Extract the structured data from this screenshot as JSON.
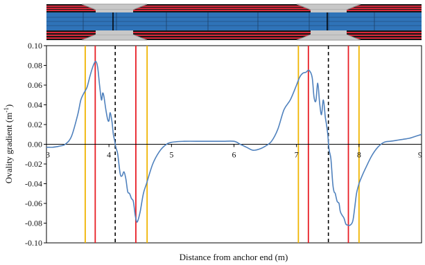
{
  "chart_data": {
    "type": "line",
    "xlabel": "Distance from anchor end (m)",
    "ylabel": "Ovality gradient (m",
    "ylabel_sup": "-1",
    "ylabel_close": ")",
    "xlim": [
      3,
      9
    ],
    "ylim": [
      -0.1,
      0.1
    ],
    "x_ticks": [
      3,
      4,
      5,
      6,
      7,
      8,
      9
    ],
    "y_ticks": [
      0.1,
      0.08,
      0.06,
      0.04,
      0.02,
      0.0,
      -0.02,
      -0.04,
      -0.06,
      -0.08,
      -0.1
    ],
    "y_tick_labels": [
      "0.10",
      "0.08",
      "0.06",
      "0.04",
      "0.02",
      "0.00",
      "-0.02",
      "-0.04",
      "-0.06",
      "-0.08",
      "-0.10"
    ],
    "grid": false,
    "series": [
      {
        "color": "#4f81bd",
        "points": [
          [
            3.0,
            -0.003
          ],
          [
            3.1,
            -0.003
          ],
          [
            3.2,
            -0.002
          ],
          [
            3.3,
            0.0
          ],
          [
            3.4,
            0.008
          ],
          [
            3.5,
            0.03
          ],
          [
            3.55,
            0.045
          ],
          [
            3.6,
            0.052
          ],
          [
            3.65,
            0.058
          ],
          [
            3.7,
            0.07
          ],
          [
            3.75,
            0.08
          ],
          [
            3.79,
            0.084
          ],
          [
            3.82,
            0.078
          ],
          [
            3.85,
            0.06
          ],
          [
            3.88,
            0.045
          ],
          [
            3.9,
            0.052
          ],
          [
            3.92,
            0.048
          ],
          [
            3.95,
            0.035
          ],
          [
            3.98,
            0.025
          ],
          [
            4.0,
            0.024
          ],
          [
            4.02,
            0.032
          ],
          [
            4.05,
            0.022
          ],
          [
            4.07,
            0.01
          ],
          [
            4.09,
            0.004
          ],
          [
            4.11,
            -0.003
          ],
          [
            4.14,
            -0.01
          ],
          [
            4.18,
            -0.03
          ],
          [
            4.21,
            -0.032
          ],
          [
            4.24,
            -0.028
          ],
          [
            4.27,
            -0.035
          ],
          [
            4.3,
            -0.048
          ],
          [
            4.33,
            -0.05
          ],
          [
            4.36,
            -0.055
          ],
          [
            4.39,
            -0.058
          ],
          [
            4.42,
            -0.072
          ],
          [
            4.44,
            -0.078
          ],
          [
            4.46,
            -0.078
          ],
          [
            4.5,
            -0.068
          ],
          [
            4.55,
            -0.05
          ],
          [
            4.6,
            -0.04
          ],
          [
            4.7,
            -0.02
          ],
          [
            4.8,
            -0.008
          ],
          [
            4.9,
            -0.001
          ],
          [
            5.0,
            0.002
          ],
          [
            5.2,
            0.003
          ],
          [
            5.5,
            0.003
          ],
          [
            5.8,
            0.003
          ],
          [
            6.0,
            0.003
          ],
          [
            6.1,
            0.0
          ],
          [
            6.2,
            -0.003
          ],
          [
            6.3,
            -0.006
          ],
          [
            6.4,
            -0.005
          ],
          [
            6.5,
            -0.002
          ],
          [
            6.6,
            0.003
          ],
          [
            6.7,
            0.015
          ],
          [
            6.8,
            0.035
          ],
          [
            6.9,
            0.045
          ],
          [
            7.0,
            0.06
          ],
          [
            7.05,
            0.068
          ],
          [
            7.1,
            0.072
          ],
          [
            7.15,
            0.073
          ],
          [
            7.2,
            0.075
          ],
          [
            7.25,
            0.068
          ],
          [
            7.28,
            0.048
          ],
          [
            7.31,
            0.044
          ],
          [
            7.34,
            0.062
          ],
          [
            7.37,
            0.042
          ],
          [
            7.4,
            0.03
          ],
          [
            7.43,
            0.045
          ],
          [
            7.46,
            0.028
          ],
          [
            7.48,
            0.02
          ],
          [
            7.5,
            0.01
          ],
          [
            7.52,
            -0.005
          ],
          [
            7.55,
            -0.015
          ],
          [
            7.58,
            -0.04
          ],
          [
            7.6,
            -0.048
          ],
          [
            7.62,
            -0.05
          ],
          [
            7.65,
            -0.058
          ],
          [
            7.68,
            -0.06
          ],
          [
            7.7,
            -0.068
          ],
          [
            7.73,
            -0.072
          ],
          [
            7.76,
            -0.075
          ],
          [
            7.79,
            -0.081
          ],
          [
            7.82,
            -0.082
          ],
          [
            7.86,
            -0.082
          ],
          [
            7.9,
            -0.078
          ],
          [
            7.93,
            -0.065
          ],
          [
            7.96,
            -0.05
          ],
          [
            8.0,
            -0.04
          ],
          [
            8.05,
            -0.032
          ],
          [
            8.1,
            -0.025
          ],
          [
            8.2,
            -0.012
          ],
          [
            8.3,
            -0.003
          ],
          [
            8.4,
            0.002
          ],
          [
            8.5,
            0.003
          ],
          [
            8.6,
            0.004
          ],
          [
            8.7,
            0.005
          ],
          [
            8.8,
            0.006
          ],
          [
            8.9,
            0.008
          ],
          [
            9.0,
            0.01
          ]
        ]
      }
    ],
    "vertical_lines": [
      {
        "x": 3.62,
        "color": "#f0b400",
        "style": "solid"
      },
      {
        "x": 3.78,
        "color": "#e81c24",
        "style": "solid"
      },
      {
        "x": 4.1,
        "color": "#000000",
        "style": "dashed"
      },
      {
        "x": 4.43,
        "color": "#e81c24",
        "style": "solid"
      },
      {
        "x": 4.61,
        "color": "#f0b400",
        "style": "solid"
      },
      {
        "x": 7.03,
        "color": "#f0b400",
        "style": "solid"
      },
      {
        "x": 7.19,
        "color": "#e81c24",
        "style": "solid"
      },
      {
        "x": 7.51,
        "color": "#000000",
        "style": "dashed"
      },
      {
        "x": 7.83,
        "color": "#e81c24",
        "style": "solid"
      },
      {
        "x": 8.0,
        "color": "#f0b400",
        "style": "solid"
      }
    ]
  },
  "pipe_model": {
    "colors": {
      "pipe": "#2f73b8",
      "pipe_dark": "#1c3f66",
      "layer_red": "#d9283a",
      "background": "#161616",
      "sleeve": "#c8c8c8",
      "sleeve_edge": "#9a9a9a"
    }
  }
}
